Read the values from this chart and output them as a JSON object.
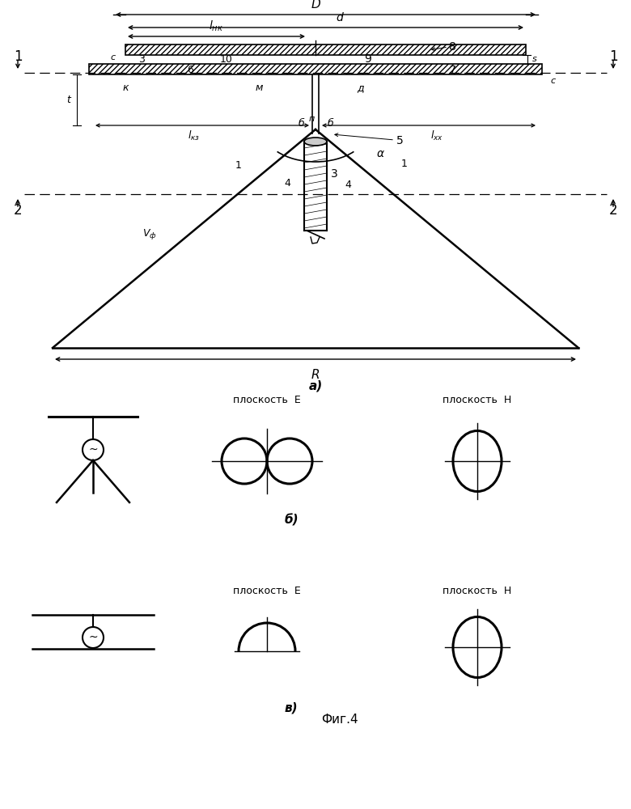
{
  "bg_color": "#ffffff",
  "lc": "#000000",
  "ploskost_E": "плоскость  Е",
  "ploskost_H": "плоскость  Н",
  "label_a": "а)",
  "label_b": "б)",
  "label_v": "в)",
  "fig_label": "Фиг.4"
}
